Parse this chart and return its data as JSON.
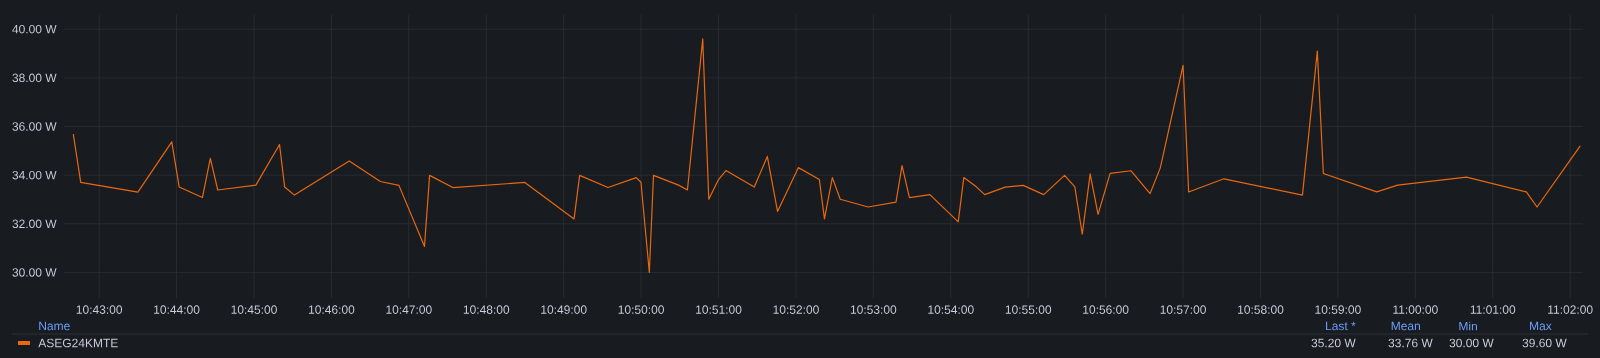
{
  "chart_data": {
    "type": "line",
    "x": [
      10.7111,
      10.7127,
      10.725,
      10.7323,
      10.7339,
      10.7389,
      10.7406,
      10.7422,
      10.7504,
      10.7555,
      10.7566,
      10.7587,
      10.7705,
      10.7772,
      10.7812,
      10.7867,
      10.7878,
      10.7928,
      10.8083,
      10.8189,
      10.8201,
      10.8262,
      10.8323,
      10.8333,
      10.8351,
      10.836,
      10.8414,
      10.8433,
      10.8466,
      10.8479,
      10.85,
      10.8516,
      10.8577,
      10.8605,
      10.8627,
      10.8672,
      10.8717,
      10.8728,
      10.8745,
      10.8762,
      10.8822,
      10.8882,
      10.8895,
      10.8911,
      10.8955,
      10.9016,
      10.9028,
      10.9055,
      10.9073,
      10.9117,
      10.9156,
      10.92,
      10.9245,
      10.9267,
      10.9283,
      10.93,
      10.9317,
      10.9343,
      10.9388,
      10.9429,
      10.9451,
      10.95,
      10.9512,
      10.9588,
      10.9757,
      10.9789,
      10.9802,
      10.9917,
      10.9962,
      11.011,
      11.0239,
      11.0262,
      11.0355
    ],
    "series": [
      {
        "name": "ASEG24KMTE",
        "color": "#e8680f",
        "values": [
          35.69,
          33.7,
          33.3,
          35.37,
          33.51,
          33.08,
          34.69,
          33.39,
          33.59,
          35.26,
          33.51,
          33.18,
          34.58,
          33.74,
          33.58,
          31.07,
          33.99,
          33.49,
          33.7,
          32.2,
          33.99,
          33.49,
          33.9,
          33.71,
          30.0,
          33.99,
          33.59,
          33.39,
          39.6,
          33.01,
          33.82,
          34.19,
          33.51,
          34.77,
          32.51,
          34.31,
          33.82,
          32.2,
          33.9,
          33.01,
          32.69,
          32.89,
          34.39,
          33.08,
          33.2,
          32.08,
          33.9,
          33.52,
          33.2,
          33.51,
          33.58,
          33.2,
          33.99,
          33.52,
          31.57,
          34.05,
          32.39,
          34.07,
          34.18,
          33.24,
          34.3,
          38.51,
          33.31,
          33.85,
          33.18,
          39.1,
          34.07,
          33.31,
          33.59,
          33.92,
          33.31,
          32.69,
          35.2
        ]
      }
    ],
    "xlim": [
      10.7091,
      11.0361
    ],
    "ylim": [
      28.95,
      40.6
    ],
    "xticks": [
      {
        "value": 10.71667,
        "label": "10:43:00"
      },
      {
        "value": 10.73333,
        "label": "10:44:00"
      },
      {
        "value": 10.75,
        "label": "10:45:00"
      },
      {
        "value": 10.76667,
        "label": "10:46:00"
      },
      {
        "value": 10.78333,
        "label": "10:47:00"
      },
      {
        "value": 10.8,
        "label": "10:48:00"
      },
      {
        "value": 10.81667,
        "label": "10:49:00"
      },
      {
        "value": 10.83333,
        "label": "10:50:00"
      },
      {
        "value": 10.85,
        "label": "10:51:00"
      },
      {
        "value": 10.86667,
        "label": "10:52:00"
      },
      {
        "value": 10.88333,
        "label": "10:53:00"
      },
      {
        "value": 10.9,
        "label": "10:54:00"
      },
      {
        "value": 10.91667,
        "label": "10:55:00"
      },
      {
        "value": 10.93333,
        "label": "10:56:00"
      },
      {
        "value": 10.95,
        "label": "10:57:00"
      },
      {
        "value": 10.96667,
        "label": "10:58:00"
      },
      {
        "value": 10.98333,
        "label": "10:59:00"
      },
      {
        "value": 11.0,
        "label": "11:00:00"
      },
      {
        "value": 11.01667,
        "label": "11:01:00"
      },
      {
        "value": 11.03333,
        "label": "11:02:00"
      }
    ],
    "yticks": [
      {
        "value": 30,
        "label": "30.00 W"
      },
      {
        "value": 32,
        "label": "32.00 W"
      },
      {
        "value": 34,
        "label": "34.00 W"
      },
      {
        "value": 36,
        "label": "36.00 W"
      },
      {
        "value": 38,
        "label": "38.00 W"
      },
      {
        "value": 40,
        "label": "40.00 W"
      }
    ],
    "grid": true,
    "legend": "bottom",
    "annotations": [
      "Name",
      "Last *",
      "Mean",
      "Min",
      "Max",
      "35.20 W",
      "33.76 W",
      "30.00 W",
      "39.60 W"
    ]
  }
}
